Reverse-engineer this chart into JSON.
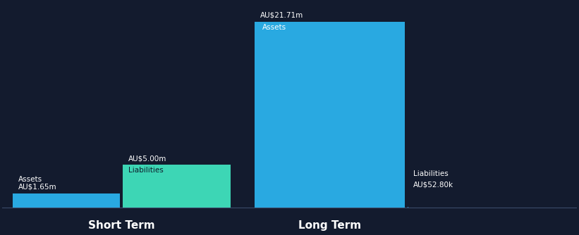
{
  "background_color": "#131b2e",
  "text_color": "#ffffff",
  "bar_colors": {
    "assets_blue": "#29a9e1",
    "liabilities_teal": "#3dd6b5"
  },
  "short_term": {
    "assets_value": 1.65,
    "liabilities_value": 5.0,
    "assets_label": "Assets",
    "liabilities_label": "Liabilities",
    "assets_value_text": "AU$1.65m",
    "liabilities_value_text": "AU$5.00m",
    "group_label": "Short Term"
  },
  "long_term": {
    "assets_value": 21.71,
    "liabilities_value": 0.0528,
    "assets_label": "Assets",
    "liabilities_label": "Liabilities",
    "assets_value_text": "AU$21.71m",
    "liabilities_value_text": "AU$52.80k",
    "group_label": "Long Term"
  },
  "group_label_fontsize": 11,
  "value_label_fontsize": 7.5,
  "inner_label_fontsize": 7.5
}
